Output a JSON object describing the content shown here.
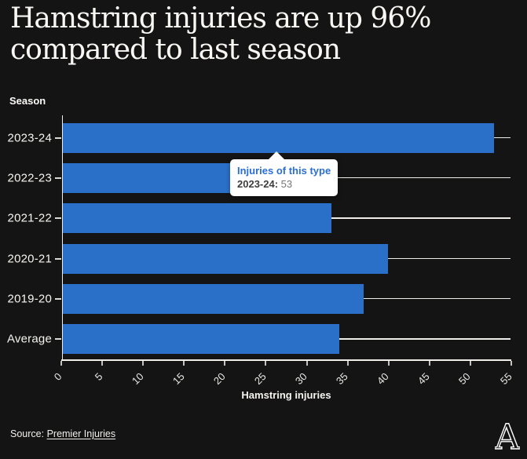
{
  "header": {
    "title": "Hamstring injuries are up 96% compared to last season"
  },
  "chart": {
    "y_axis_title": "Season",
    "x_axis_title": "Hamstring injuries"
  },
  "chart_data": {
    "type": "bar",
    "orientation": "horizontal",
    "title": "Hamstring injuries are up 96% compared to last season",
    "categories": [
      "2023-24",
      "2022-23",
      "2021-22",
      "2020-21",
      "2019-20",
      "Average"
    ],
    "values": [
      53,
      27,
      33,
      40,
      37,
      34
    ],
    "xlabel": "Hamstring injuries",
    "ylabel": "Season",
    "xlim": [
      0,
      55
    ],
    "xticks": [
      0,
      5,
      10,
      15,
      20,
      25,
      30,
      35,
      40,
      45,
      50,
      55
    ],
    "bar_color": "#2a70c8",
    "grid": false,
    "legend": "none"
  },
  "tooltip": {
    "title": "Injuries of this type",
    "label": "2023-24:",
    "value": "53",
    "highlighted_category": "2023-24"
  },
  "footer": {
    "source_prefix": "Source: ",
    "source_link": "Premier Injuries",
    "logo_letter": "A"
  }
}
